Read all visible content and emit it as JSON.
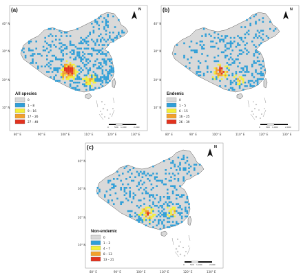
{
  "panels": [
    {
      "label": "(a)",
      "legend_title": "All species",
      "legend_items": [
        {
          "label": "0",
          "color": "#d9d9d9"
        },
        {
          "label": "1 – 8",
          "color": "#2f9fd8"
        },
        {
          "label": "9 – 16",
          "color": "#f3ef3a"
        },
        {
          "label": "17 – 26",
          "color": "#f2a02c"
        },
        {
          "label": "27 – 49",
          "color": "#e2321e"
        }
      ]
    },
    {
      "label": "(b)",
      "legend_title": "Endemic",
      "legend_items": [
        {
          "label": "0",
          "color": "#d9d9d9"
        },
        {
          "label": "1 – 5",
          "color": "#2f9fd8"
        },
        {
          "label": "6 – 15",
          "color": "#f3ef3a"
        },
        {
          "label": "16 – 25",
          "color": "#f2a02c"
        },
        {
          "label": "26 – 39",
          "color": "#e2321e"
        }
      ]
    },
    {
      "label": "(c)",
      "legend_title": "Non-endemic",
      "legend_items": [
        {
          "label": "0",
          "color": "#d9d9d9"
        },
        {
          "label": "1 – 3",
          "color": "#2f9fd8"
        },
        {
          "label": "4 – 7",
          "color": "#f3ef3a"
        },
        {
          "label": "8 – 13",
          "color": "#f2a02c"
        },
        {
          "label": "13 – 21",
          "color": "#e2321e"
        }
      ]
    }
  ],
  "lat_ticks": [
    "40° N",
    "30° N",
    "20° N",
    "10° N"
  ],
  "lon_ticks": [
    "80° E",
    "90° E",
    "100° E",
    "110° E",
    "120° E",
    "130° E"
  ],
  "scale_labels": [
    "0",
    "500",
    "1,000",
    "2,000"
  ],
  "north_label": "N",
  "colors": {
    "background": "#ffffff",
    "land": "#d9d9d9",
    "border": "#555555"
  }
}
